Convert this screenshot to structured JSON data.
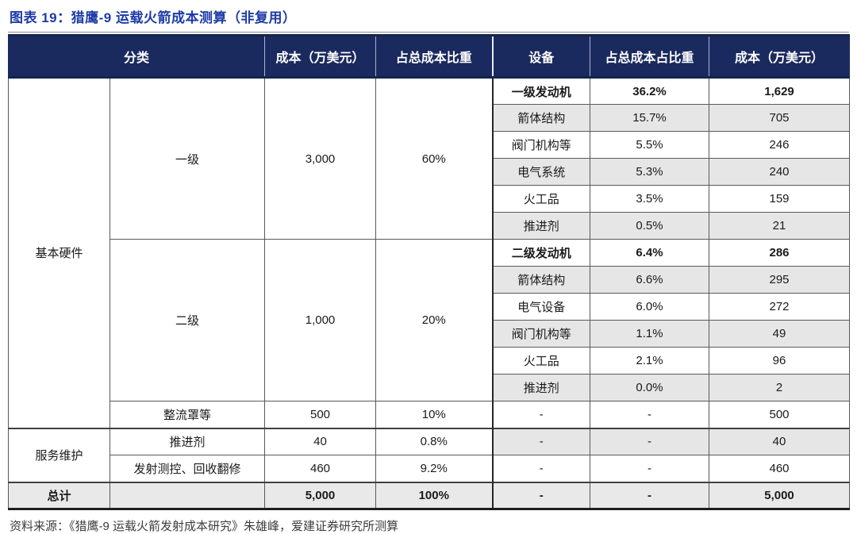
{
  "title": "图表 19：猎鹰-9 运载火箭成本测算（非复用）",
  "source_note": "资料来源：《猎鹰-9 运载火箭发射成本研究》朱雄峰，爱建证券研究所测算",
  "colors": {
    "title_blue": "#1C3BA6",
    "header_navy": "#1B2A5E",
    "band_gray": "#E7E6E6",
    "total_gray": "#E9E9E9"
  },
  "table": {
    "headers": {
      "category": "分类",
      "cost_left": "成本（万美元）",
      "share_left": "占总成本比重",
      "device": "设备",
      "share_right": "占总成本占比重",
      "cost_right": "成本（万美元）"
    },
    "groups": {
      "hardware": "基本硬件",
      "service": "服务维护"
    },
    "stage1": {
      "label": "一级",
      "cost": "3,000",
      "share": "60%"
    },
    "stage2": {
      "label": "二级",
      "cost": "1,000",
      "share": "20%"
    },
    "stage1_devices": [
      {
        "name": "一级发动机",
        "share": "36.2%",
        "cost": "1,629"
      },
      {
        "name": "箭体结构",
        "share": "15.7%",
        "cost": "705"
      },
      {
        "name": "阀门机构等",
        "share": "5.5%",
        "cost": "246"
      },
      {
        "name": "电气系统",
        "share": "5.3%",
        "cost": "240"
      },
      {
        "name": "火工品",
        "share": "3.5%",
        "cost": "159"
      },
      {
        "name": "推进剂",
        "share": "0.5%",
        "cost": "21"
      }
    ],
    "stage2_devices": [
      {
        "name": "二级发动机",
        "share": "6.4%",
        "cost": "286"
      },
      {
        "name": "箭体结构",
        "share": "6.6%",
        "cost": "295"
      },
      {
        "name": "电气设备",
        "share": "6.0%",
        "cost": "272"
      },
      {
        "name": "阀门机构等",
        "share": "1.1%",
        "cost": "49"
      },
      {
        "name": "火工品",
        "share": "2.1%",
        "cost": "96"
      },
      {
        "name": "推进剂",
        "share": "0.0%",
        "cost": "2"
      }
    ],
    "fairing": {
      "label": "整流罩等",
      "cost": "500",
      "share": "10%",
      "device": "-",
      "device_share": "-",
      "device_cost": "500"
    },
    "service_rows": [
      {
        "label": "推进剂",
        "cost": "40",
        "share": "0.8%",
        "device": "-",
        "device_share": "-",
        "device_cost": "40"
      },
      {
        "label": "发射测控、回收翻修",
        "cost": "460",
        "share": "9.2%",
        "device": "-",
        "device_share": "-",
        "device_cost": "460"
      }
    ],
    "total": {
      "label": "总计",
      "cost": "5,000",
      "share": "100%",
      "device": "-",
      "device_share": "-",
      "device_cost": "5,000"
    }
  }
}
